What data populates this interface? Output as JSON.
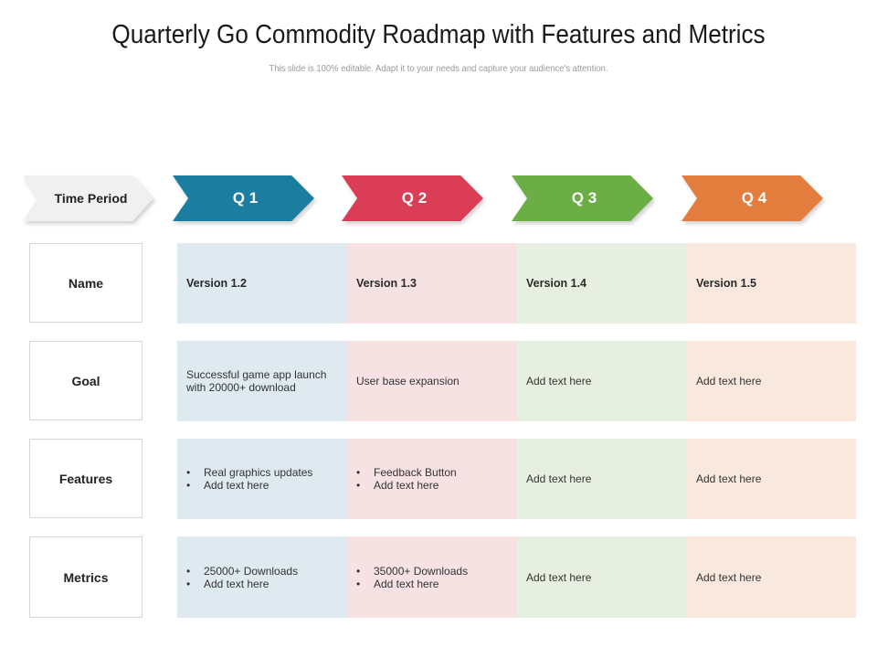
{
  "title": "Quarterly Go Commodity Roadmap with Features and Metrics",
  "subtitle": "This slide is 100% editable. Adapt it to your needs and capture your audience's attention.",
  "header": {
    "time_period": "Time Period",
    "quarters": [
      {
        "label": "Q 1",
        "color": "#1b7ea0"
      },
      {
        "label": "Q 2",
        "color": "#da3d55"
      },
      {
        "label": "Q 3",
        "color": "#6aae45"
      },
      {
        "label": "Q 4",
        "color": "#e27d3d"
      }
    ]
  },
  "rows": {
    "name": {
      "label": "Name",
      "cells": [
        "Version 1.2",
        "Version 1.3",
        "Version 1.4",
        "Version 1.5"
      ]
    },
    "goal": {
      "label": "Goal",
      "cells": [
        "Successful game app launch with 20000+ download",
        "User base expansion",
        "Add text here",
        "Add text here"
      ]
    },
    "features": {
      "label": "Features",
      "q1": [
        "Real graphics updates",
        "Add text here"
      ],
      "q2": [
        "Feedback Button",
        "Add text here"
      ],
      "q3": "Add text here",
      "q4": "Add text here"
    },
    "metrics": {
      "label": "Metrics",
      "q1": [
        "25000+ Downloads",
        "Add text here"
      ],
      "q2": [
        "35000+ Downloads",
        "Add text here"
      ],
      "q3": "Add text here",
      "q4": "Add text here"
    }
  }
}
